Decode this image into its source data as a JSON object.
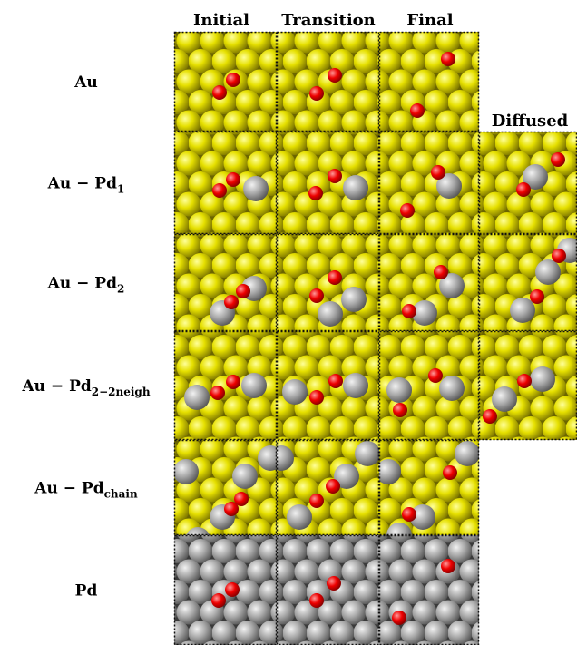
{
  "columns": [
    "Initial",
    "Transition",
    "Final",
    "Diffused"
  ],
  "rows": [
    {
      "label": "Au"
    },
    {
      "label": "Au − Pd",
      "sub": "1"
    },
    {
      "label": "Au − Pd",
      "sub": "2"
    },
    {
      "label": "Au − Pd",
      "sub": "2−2neigh"
    },
    {
      "label": "Au − Pd",
      "sub": "chain"
    },
    {
      "label": "Pd"
    }
  ]
}
